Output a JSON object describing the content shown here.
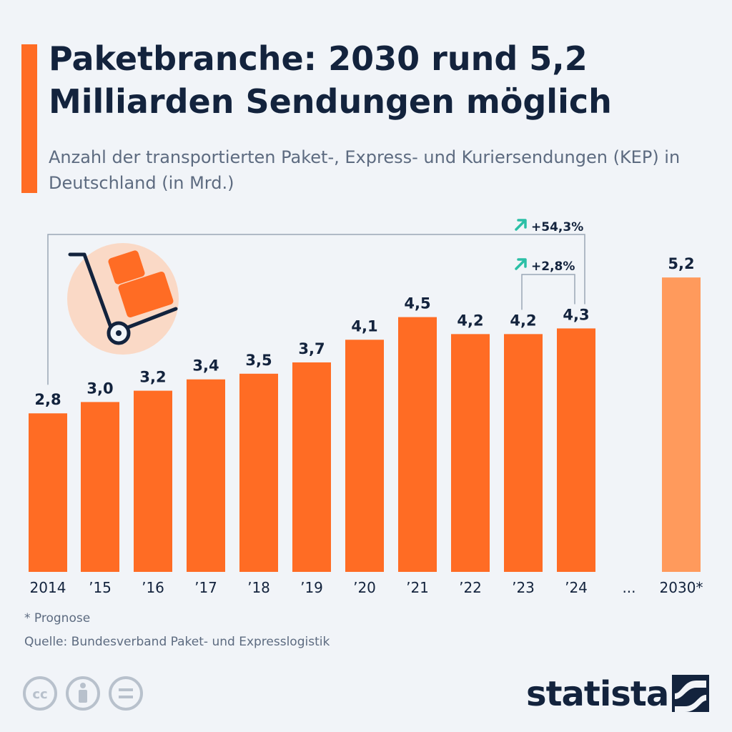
{
  "header": {
    "title": "Paketbranche: 2030 rund 5,2 Milliarden Sendungen möglich",
    "subtitle": "Anzahl der transportierten Paket-, Express- und Kuriersendungen (KEP) in Deutschland (in Mrd.)"
  },
  "chart_data": {
    "type": "bar",
    "categories": [
      "2014",
      "’15",
      "’16",
      "’17",
      "’18",
      "’19",
      "’20",
      "’21",
      "’22",
      "’23",
      "’24",
      "2030*"
    ],
    "values": [
      2.8,
      3.0,
      3.2,
      3.4,
      3.5,
      3.7,
      4.1,
      4.5,
      4.2,
      4.2,
      4.3,
      5.2
    ],
    "value_labels": [
      "2,8",
      "3,0",
      "3,2",
      "3,4",
      "3,5",
      "3,7",
      "4,1",
      "4,5",
      "4,2",
      "4,2",
      "4,3",
      "5,2"
    ],
    "forecast_index": 11,
    "gap_label": "...",
    "ylim": [
      0,
      5.2
    ],
    "grid": false,
    "annotations": [
      {
        "from": "2014",
        "to": "’24",
        "label": "+54,3%"
      },
      {
        "from": "’23",
        "to": "’24",
        "label": "+2,8%"
      }
    ],
    "colors": {
      "bar": "#ff6c24",
      "forecast_bar": "#ff9a5c",
      "arrow": "#2bbfa6",
      "text": "#13233d",
      "bracket": "#9aa6b5"
    }
  },
  "footer": {
    "footnote": "* Prognose",
    "source": "Quelle: Bundesverband Paket- und Expresslogistik",
    "brand": "statista",
    "license_icons": [
      "cc-icon",
      "attribution-icon",
      "no-derivatives-icon"
    ]
  },
  "illustration": {
    "icon": "hand-truck-icon"
  }
}
